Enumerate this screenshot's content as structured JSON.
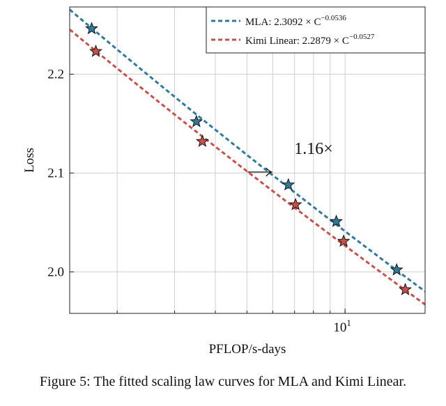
{
  "caption": "Figure 5: The fitted scaling law curves for MLA and Kimi Linear.",
  "chart_data": {
    "type": "scatter",
    "title": "",
    "xlabel": "PFLOP/s-days",
    "ylabel": "Loss",
    "xscale": "log",
    "xlim": [
      1.43,
      17.6
    ],
    "ylim": [
      1.958,
      2.268
    ],
    "y_ticks": [
      2.0,
      2.1,
      2.2
    ],
    "y_tick_labels": [
      "2.0",
      "2.1",
      "2.2"
    ],
    "x_ticks": [
      10
    ],
    "x_tick_base": "10",
    "x_tick_exp": "1",
    "x_minor_ticks": [
      2,
      3,
      4,
      5,
      6,
      7,
      8,
      9
    ],
    "grid": true,
    "legend_position": "top-right",
    "series": [
      {
        "name": "MLA",
        "legend_label": "MLA: 2.3092 × C",
        "legend_exp": "−0.0536",
        "color": "#2e7a9c",
        "fit": {
          "a": 2.3092,
          "b": -0.0536
        },
        "points": [
          {
            "x": 1.67,
            "y": 2.246
          },
          {
            "x": 3.5,
            "y": 2.152
          },
          {
            "x": 6.7,
            "y": 2.088
          },
          {
            "x": 9.4,
            "y": 2.051
          },
          {
            "x": 14.4,
            "y": 2.002
          }
        ]
      },
      {
        "name": "Kimi Linear",
        "legend_label": "Kimi Linear: 2.2879 × C",
        "legend_exp": "−0.0527",
        "color": "#c9504a",
        "fit": {
          "a": 2.2879,
          "b": -0.0527
        },
        "points": [
          {
            "x": 1.72,
            "y": 2.223
          },
          {
            "x": 3.65,
            "y": 2.132
          },
          {
            "x": 7.05,
            "y": 2.068
          },
          {
            "x": 9.9,
            "y": 2.031
          },
          {
            "x": 15.3,
            "y": 1.982
          }
        ]
      }
    ],
    "annotation": {
      "text": "1.16×",
      "arrow_from": {
        "x": 5.02,
        "y": 2.101
      },
      "arrow_to": {
        "x": 5.95,
        "y": 2.101
      }
    }
  }
}
